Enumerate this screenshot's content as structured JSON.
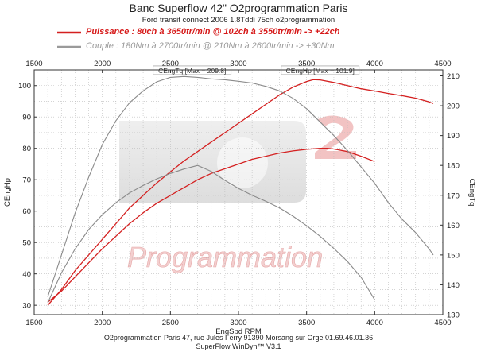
{
  "header": {
    "title": "Banc Superflow 42\" O2programmation Paris",
    "subtitle": "Ford transit connect 2006 1.8Tddi 75ch o2programmation"
  },
  "legend": {
    "power": "Puissance : 80ch à 3650tr/min @ 102ch à 3550tr/min  -> +22ch",
    "torque": "Couple :  180Nm à 2700tr/min @ 210Nm à 2600tr/min -> +30Nm"
  },
  "footer": {
    "line1": "O2programmation Paris 47, rue Jules Ferry 91390 Morsang sur Orge 01.69.46.01.36",
    "line2": "SuperFlow WinDyn™ V3.1"
  },
  "watermark": {
    "text": "Programmation"
  },
  "colors": {
    "power": "#d42020",
    "torque": "#8a8a8a",
    "grid": "#bbbbbb"
  },
  "chart_data": {
    "type": "line",
    "xlabel": "EngSpd RPM",
    "ylabel": "CEngHp",
    "y2label": "CEngTq",
    "xlim": [
      1500,
      4500
    ],
    "ylim": [
      27,
      105
    ],
    "y2lim": [
      130,
      212
    ],
    "x_ticks": [
      1500,
      2000,
      2500,
      3000,
      3500,
      4000,
      4500
    ],
    "y_ticks": [
      30,
      40,
      50,
      60,
      70,
      80,
      90,
      100
    ],
    "y2_ticks": [
      130,
      140,
      150,
      160,
      170,
      180,
      190,
      200,
      210
    ],
    "grid": true,
    "annotations": [
      {
        "text": "CEngTq [Max = 209.8]",
        "x": 2660,
        "y": 104
      },
      {
        "text": "CEngHp [Max = 101.9]",
        "x": 3600,
        "y": 104
      }
    ],
    "series": [
      {
        "name": "CEngHp",
        "axis": "left",
        "style": "power-tuned",
        "x": [
          1600,
          1700,
          1800,
          1900,
          2000,
          2100,
          2200,
          2300,
          2400,
          2500,
          2600,
          2700,
          2800,
          2900,
          3000,
          3100,
          3200,
          3300,
          3400,
          3500,
          3550,
          3600,
          3700,
          3800,
          3900,
          4000,
          4100,
          4200,
          4300,
          4400,
          4430
        ],
        "y": [
          30,
          35,
          41,
          46,
          51,
          56,
          61,
          65,
          69,
          72.5,
          76,
          79,
          82,
          85,
          88,
          91,
          94,
          97,
          99.5,
          101.3,
          101.9,
          101.8,
          101,
          100,
          99,
          98.3,
          97.5,
          96.8,
          96,
          94.8,
          94.3
        ]
      },
      {
        "name": "CEngHp",
        "axis": "left",
        "style": "power-stock",
        "x": [
          1600,
          1700,
          1800,
          1900,
          2000,
          2100,
          2200,
          2300,
          2400,
          2500,
          2600,
          2700,
          2800,
          2900,
          3000,
          3100,
          3200,
          3300,
          3400,
          3500,
          3600,
          3650,
          3700,
          3800,
          3900,
          4000
        ],
        "y": [
          31,
          34.5,
          39,
          43.5,
          48,
          52,
          56,
          59.5,
          62.5,
          65,
          67.5,
          70,
          72,
          73.5,
          75,
          76.5,
          77.5,
          78.5,
          79.2,
          79.7,
          80,
          80,
          79.8,
          79,
          77.5,
          75.8
        ]
      },
      {
        "name": "CEngTq",
        "axis": "right",
        "style": "torque-tuned",
        "x": [
          1600,
          1700,
          1800,
          1900,
          2000,
          2100,
          2200,
          2300,
          2400,
          2500,
          2600,
          2700,
          2800,
          2900,
          3000,
          3100,
          3200,
          3300,
          3400,
          3500,
          3600,
          3700,
          3800,
          3900,
          4000,
          4100,
          4200,
          4300,
          4400,
          4430
        ],
        "y": [
          136,
          150,
          164,
          176,
          187,
          195,
          201,
          205,
          208,
          209.5,
          209.8,
          209.5,
          209,
          208.7,
          208.2,
          207.6,
          206.5,
          205,
          202.5,
          199,
          194.5,
          190,
          185,
          179.5,
          174,
          167.5,
          162,
          157.5,
          152,
          150
        ]
      },
      {
        "name": "CEngTq",
        "axis": "right",
        "style": "torque-stock",
        "x": [
          1600,
          1700,
          1800,
          1900,
          2000,
          2100,
          2200,
          2300,
          2400,
          2500,
          2600,
          2700,
          2800,
          2900,
          3000,
          3100,
          3200,
          3300,
          3400,
          3500,
          3600,
          3700,
          3800,
          3900,
          4000
        ],
        "y": [
          134,
          144,
          152,
          158.5,
          163.5,
          167.5,
          170.8,
          173.3,
          175.5,
          177.3,
          178.8,
          180,
          178,
          175,
          172.3,
          170,
          168,
          165.8,
          163,
          159.8,
          156.2,
          152.2,
          147.8,
          142.5,
          135
        ]
      }
    ]
  }
}
